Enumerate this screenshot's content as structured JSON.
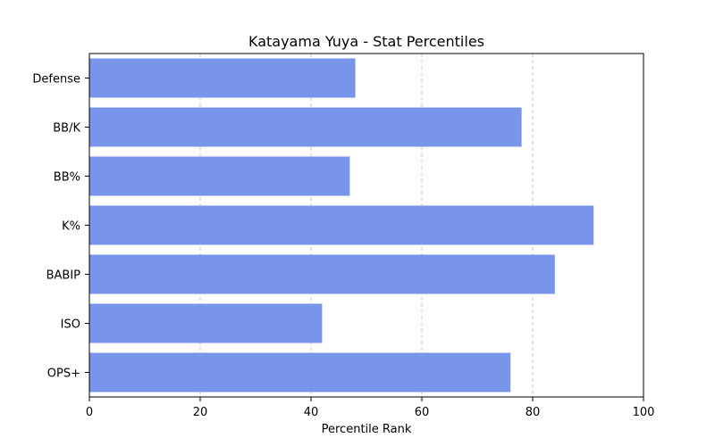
{
  "chart_data": {
    "type": "bar",
    "orientation": "horizontal",
    "title": "Katayama Yuya - Stat Percentiles",
    "xlabel": "Percentile Rank",
    "ylabel": "",
    "categories": [
      "Defense",
      "BB/K",
      "BB%",
      "K%",
      "BABIP",
      "ISO",
      "OPS+"
    ],
    "values": [
      48,
      78,
      47,
      91,
      84,
      42,
      76
    ],
    "xlim": [
      0,
      100
    ],
    "xticks": [
      0,
      20,
      40,
      60,
      80,
      100
    ],
    "grid": "x-axis dashed",
    "bar_color": "#7995e9",
    "grid_color": "#c8c8c8"
  }
}
